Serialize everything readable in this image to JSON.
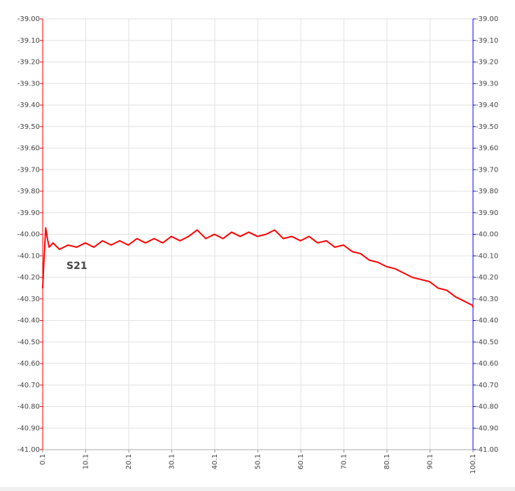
{
  "chart_data": {
    "type": "line",
    "x": [
      0.1,
      0.4,
      0.8,
      1.2,
      1.6,
      2.5,
      4,
      6,
      8,
      10,
      12,
      14,
      16,
      18,
      20,
      22,
      24,
      26,
      28,
      30,
      32,
      34,
      36,
      38,
      40,
      42,
      44,
      46,
      48,
      50,
      52,
      54,
      56,
      58,
      60,
      62,
      64,
      66,
      68,
      70,
      72,
      74,
      76,
      78,
      80,
      82,
      84,
      86,
      88,
      90,
      92,
      94,
      96,
      98,
      100,
      100.1
    ],
    "series": [
      {
        "name": "S21",
        "color": "#ff0000",
        "values": [
          -40.25,
          -40.12,
          -39.97,
          -40.02,
          -40.06,
          -40.04,
          -40.07,
          -40.05,
          -40.06,
          -40.04,
          -40.06,
          -40.03,
          -40.05,
          -40.03,
          -40.05,
          -40.02,
          -40.04,
          -40.02,
          -40.04,
          -40.01,
          -40.03,
          -40.01,
          -39.98,
          -40.02,
          -40.0,
          -40.02,
          -39.99,
          -40.01,
          -39.99,
          -40.01,
          -40.0,
          -39.98,
          -40.02,
          -40.01,
          -40.03,
          -40.01,
          -40.04,
          -40.03,
          -40.06,
          -40.05,
          -40.08,
          -40.09,
          -40.12,
          -40.13,
          -40.15,
          -40.16,
          -40.18,
          -40.2,
          -40.21,
          -40.22,
          -40.25,
          -40.26,
          -40.29,
          -40.31,
          -40.33,
          -40.34
        ]
      }
    ],
    "xlim": [
      0.1,
      100.1
    ],
    "xticks": [
      0.1,
      10.1,
      20.1,
      30.1,
      40.1,
      50.1,
      60.1,
      70.1,
      80.1,
      90.1,
      100.1
    ],
    "ylim": [
      -41,
      -39
    ],
    "yticks": [
      {
        "value": -39,
        "label": "-39.00"
      },
      {
        "value": -39.1,
        "label": "-39.10"
      },
      {
        "value": -39.2,
        "label": "-39.20"
      },
      {
        "value": -39.3,
        "label": "-39.30"
      },
      {
        "value": -39.4,
        "label": "-39.40"
      },
      {
        "value": -39.5,
        "label": "-39.50"
      },
      {
        "value": -39.6,
        "label": "-39.60"
      },
      {
        "value": -39.7,
        "label": "-39.70"
      },
      {
        "value": -39.8,
        "label": "-39.80"
      },
      {
        "value": -39.9,
        "label": "-39.90"
      },
      {
        "value": -40,
        "label": "-40.00"
      },
      {
        "value": -40.1,
        "label": "-40.10"
      },
      {
        "value": -40.2,
        "label": "-40.20"
      },
      {
        "value": -40.3,
        "label": "-40.30"
      },
      {
        "value": -40.4,
        "label": "-40.40"
      },
      {
        "value": -40.5,
        "label": "-40.50"
      },
      {
        "value": -40.6,
        "label": "-40.60"
      },
      {
        "value": -40.7,
        "label": "-40.70"
      },
      {
        "value": -40.8,
        "label": "-40.80"
      },
      {
        "value": -40.9,
        "label": "-40.90"
      },
      {
        "value": -41,
        "label": "-41.00"
      }
    ],
    "y2lim": [
      -41,
      -39
    ],
    "y2ticks": [
      {
        "value": -39,
        "label": "-39.00"
      },
      {
        "value": -39.1,
        "label": "-39.10"
      },
      {
        "value": -39.2,
        "label": "-39.20"
      },
      {
        "value": -39.3,
        "label": "-39.30"
      },
      {
        "value": -39.4,
        "label": "-39.40"
      },
      {
        "value": -39.5,
        "label": "-39.50"
      },
      {
        "value": -39.6,
        "label": "-39.60"
      },
      {
        "value": -39.7,
        "label": "-39.70"
      },
      {
        "value": -39.8,
        "label": "-39.80"
      },
      {
        "value": -39.9,
        "label": "-39.90"
      },
      {
        "value": -40,
        "label": "-40.00"
      },
      {
        "value": -40.1,
        "label": "-40.10"
      },
      {
        "value": -40.2,
        "label": "-40.20"
      },
      {
        "value": -40.3,
        "label": "-40.30"
      },
      {
        "value": -40.4,
        "label": "-40.40"
      },
      {
        "value": -40.5,
        "label": "-40.50"
      },
      {
        "value": -40.6,
        "label": "-40.60"
      },
      {
        "value": -40.7,
        "label": "-40.70"
      },
      {
        "value": -40.8,
        "label": "-40.80"
      },
      {
        "value": -40.9,
        "label": "-40.90"
      },
      {
        "value": -41,
        "label": "-41.00"
      }
    ],
    "grid": true,
    "left_axis_color": "#ff0000",
    "right_axis_color": "#0000ff",
    "label_color": "#cc0000"
  }
}
